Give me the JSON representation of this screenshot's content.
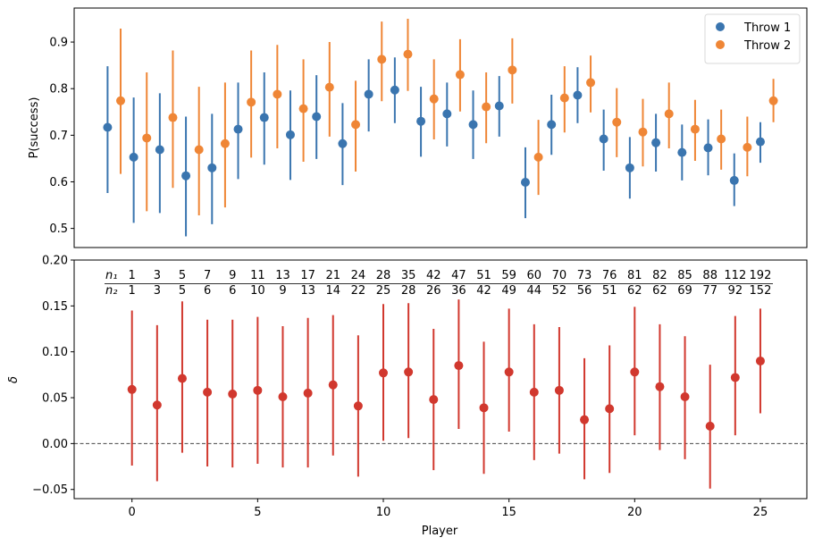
{
  "chart_data": [
    {
      "type": "scatter",
      "subtype": "errorbar",
      "title": "",
      "xlabel": "",
      "ylabel": "P(success)",
      "xlim": [
        -1.53,
        26.53
      ],
      "ylim": [
        0.459,
        0.973
      ],
      "yticks": [
        0.5,
        0.6,
        0.7,
        0.8,
        0.9
      ],
      "ytick_labels": [
        "0.5",
        "0.6",
        "0.7",
        "0.8",
        "0.9"
      ],
      "xticks_visible": false,
      "grid": false,
      "legend": {
        "placement": "top-right",
        "entries": [
          "Throw 1",
          "Throw 2"
        ]
      },
      "x": [
        0,
        1,
        2,
        3,
        4,
        5,
        6,
        7,
        8,
        9,
        10,
        11,
        12,
        13,
        14,
        15,
        16,
        17,
        18,
        19,
        20,
        21,
        22,
        23,
        24,
        25
      ],
      "series": [
        {
          "name": "Throw 1",
          "color": "#3a75af",
          "x_offset": -0.25,
          "values": [
            0.717,
            0.653,
            0.669,
            0.613,
            0.63,
            0.713,
            0.738,
            0.701,
            0.74,
            0.682,
            0.788,
            0.797,
            0.73,
            0.746,
            0.723,
            0.763,
            0.599,
            0.723,
            0.786,
            0.692,
            0.63,
            0.684,
            0.663,
            0.673,
            0.603,
            0.686
          ],
          "lower": [
            0.576,
            0.512,
            0.533,
            0.483,
            0.509,
            0.606,
            0.637,
            0.604,
            0.649,
            0.593,
            0.708,
            0.726,
            0.654,
            0.676,
            0.649,
            0.697,
            0.522,
            0.658,
            0.726,
            0.624,
            0.564,
            0.622,
            0.603,
            0.614,
            0.548,
            0.641
          ],
          "upper": [
            0.848,
            0.781,
            0.79,
            0.74,
            0.746,
            0.813,
            0.835,
            0.796,
            0.829,
            0.769,
            0.863,
            0.867,
            0.804,
            0.813,
            0.796,
            0.827,
            0.674,
            0.787,
            0.846,
            0.755,
            0.696,
            0.746,
            0.723,
            0.734,
            0.661,
            0.728
          ]
        },
        {
          "name": "Throw 2",
          "color": "#ef8636",
          "x_offset": 0.25,
          "values": [
            0.774,
            0.694,
            0.738,
            0.669,
            0.682,
            0.771,
            0.788,
            0.757,
            0.803,
            0.723,
            0.863,
            0.874,
            0.778,
            0.83,
            0.761,
            0.84,
            0.653,
            0.78,
            0.813,
            0.728,
            0.707,
            0.746,
            0.713,
            0.692,
            0.674,
            0.774
          ],
          "lower": [
            0.617,
            0.537,
            0.587,
            0.528,
            0.545,
            0.652,
            0.672,
            0.643,
            0.697,
            0.622,
            0.773,
            0.795,
            0.691,
            0.751,
            0.683,
            0.768,
            0.572,
            0.706,
            0.749,
            0.653,
            0.633,
            0.672,
            0.645,
            0.626,
            0.612,
            0.728
          ],
          "upper": [
            0.929,
            0.835,
            0.882,
            0.804,
            0.813,
            0.882,
            0.894,
            0.863,
            0.9,
            0.817,
            0.944,
            0.95,
            0.863,
            0.906,
            0.835,
            0.908,
            0.733,
            0.848,
            0.871,
            0.801,
            0.778,
            0.813,
            0.776,
            0.755,
            0.74,
            0.821
          ]
        }
      ]
    },
    {
      "type": "scatter",
      "subtype": "errorbar",
      "title": "",
      "xlabel": "Player",
      "ylabel": "δ",
      "xlim": [
        -2.3,
        26.85
      ],
      "ylim": [
        -0.06,
        0.2
      ],
      "xticks": [
        0,
        5,
        10,
        15,
        20,
        25
      ],
      "xtick_labels": [
        "0",
        "5",
        "10",
        "15",
        "20",
        "25"
      ],
      "yticks": [
        -0.05,
        0.0,
        0.05,
        0.1,
        0.15,
        0.2
      ],
      "ytick_labels": [
        "−0.05",
        "0.00",
        "0.05",
        "0.10",
        "0.15",
        "0.20"
      ],
      "grid": false,
      "reference_line": {
        "y": 0.0,
        "style": "dashed",
        "color": "#444444"
      },
      "x": [
        0,
        1,
        2,
        3,
        4,
        5,
        6,
        7,
        8,
        9,
        10,
        11,
        12,
        13,
        14,
        15,
        16,
        17,
        18,
        19,
        20,
        21,
        22,
        23,
        24,
        25
      ],
      "series": [
        {
          "name": "delta",
          "color": "#d1382e",
          "values": [
            0.059,
            0.042,
            0.071,
            0.056,
            0.054,
            0.058,
            0.051,
            0.055,
            0.064,
            0.041,
            0.077,
            0.078,
            0.048,
            0.085,
            0.039,
            0.078,
            0.056,
            0.058,
            0.026,
            0.038,
            0.078,
            0.062,
            0.051,
            0.019,
            0.072,
            0.09
          ],
          "lower": [
            -0.024,
            -0.041,
            -0.01,
            -0.025,
            -0.026,
            -0.022,
            -0.026,
            -0.026,
            -0.013,
            -0.036,
            0.003,
            0.006,
            -0.029,
            0.016,
            -0.033,
            0.013,
            -0.018,
            -0.011,
            -0.039,
            -0.032,
            0.009,
            -0.007,
            -0.017,
            -0.049,
            0.009,
            0.033
          ],
          "upper": [
            0.145,
            0.129,
            0.155,
            0.135,
            0.135,
            0.138,
            0.128,
            0.137,
            0.14,
            0.118,
            0.152,
            0.153,
            0.125,
            0.157,
            0.111,
            0.147,
            0.13,
            0.127,
            0.093,
            0.107,
            0.149,
            0.13,
            0.117,
            0.086,
            0.139,
            0.147
          ]
        }
      ],
      "annotation_table": {
        "row_labels": [
          "n₁",
          "n₂"
        ],
        "n1": [
          "1",
          "3",
          "5",
          "7",
          "9",
          "11",
          "13",
          "17",
          "21",
          "24",
          "28",
          "35",
          "42",
          "47",
          "51",
          "59",
          "60",
          "70",
          "73",
          "76",
          "81",
          "82",
          "85",
          "88",
          "112",
          "192"
        ],
        "n2": [
          "1",
          "3",
          "5",
          "6",
          "6",
          "10",
          "9",
          "13",
          "14",
          "22",
          "25",
          "28",
          "26",
          "36",
          "42",
          "49",
          "44",
          "52",
          "56",
          "51",
          "62",
          "62",
          "69",
          "77",
          "92",
          "152"
        ]
      }
    }
  ]
}
